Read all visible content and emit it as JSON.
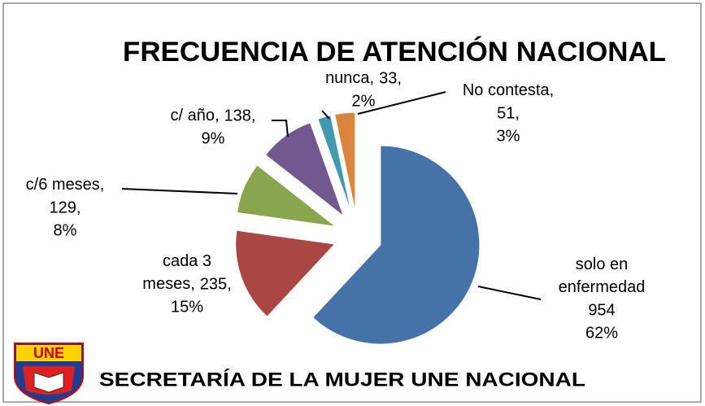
{
  "chart_data": {
    "type": "pie",
    "title": "FRECUENCIA DE ATENCIÓN NACIONAL",
    "footer": "SECRETARÍA DE LA MUJER UNE NACIONAL",
    "logo_text": "UNE",
    "categories": [
      "solo en enfermedad",
      "cada 3 meses,",
      "c/6 meses,",
      "c/ año,",
      "nunca,",
      "No contesta,"
    ],
    "values": [
      954,
      235,
      129,
      138,
      33,
      51
    ],
    "value_labels": [
      "954",
      "235,",
      "129,",
      "138,",
      "33,",
      "51,"
    ],
    "percents": [
      62,
      15,
      8,
      9,
      2,
      3
    ],
    "percent_labels": [
      "62%",
      "15%",
      "8%",
      "9%",
      "2%",
      "3%"
    ],
    "colors": [
      "#4572a7",
      "#aa4643",
      "#89a54e",
      "#71588f",
      "#4198af",
      "#db843d"
    ]
  }
}
